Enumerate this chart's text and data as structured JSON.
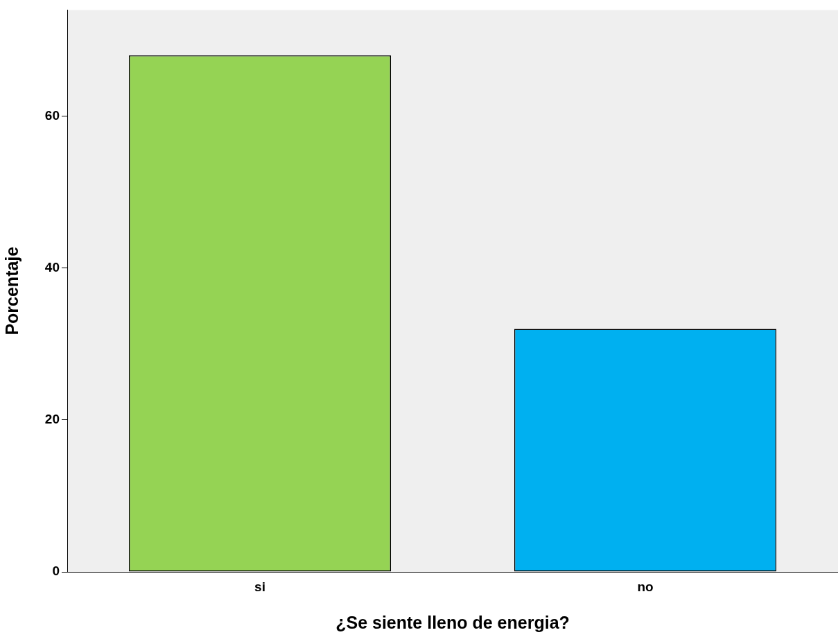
{
  "chart_data": {
    "type": "bar",
    "xlabel": "¿Se siente lleno de energia?",
    "ylabel": "Porcentaje",
    "categories": [
      "si",
      "no"
    ],
    "values": [
      68,
      32
    ],
    "colors": [
      "#95d354",
      "#00b0f0"
    ],
    "ylim": [
      0,
      74
    ],
    "yticks": [
      0,
      20,
      40,
      60
    ]
  }
}
